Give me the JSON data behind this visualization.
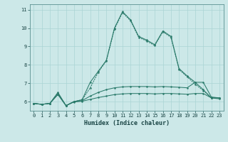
{
  "title": "",
  "xlabel": "Humidex (Indice chaleur)",
  "xlim": [
    -0.5,
    23.5
  ],
  "ylim": [
    5.5,
    11.3
  ],
  "xticks": [
    0,
    1,
    2,
    3,
    4,
    5,
    6,
    7,
    8,
    9,
    10,
    11,
    12,
    13,
    14,
    15,
    16,
    17,
    18,
    19,
    20,
    21,
    22,
    23
  ],
  "yticks": [
    6,
    7,
    8,
    9,
    10,
    11
  ],
  "color": "#2a7a6a",
  "bg_color": "#cce8e8",
  "grid_color": "#aad4d4",
  "line1_x": [
    0,
    1,
    2,
    3,
    4,
    5,
    6,
    7,
    8,
    9,
    10,
    11,
    12,
    13,
    14,
    15,
    16,
    17,
    18,
    19,
    20,
    21,
    22,
    23
  ],
  "line1_y": [
    5.9,
    5.85,
    5.9,
    6.5,
    5.78,
    6.0,
    6.1,
    7.05,
    7.65,
    8.25,
    10.0,
    10.9,
    10.45,
    9.55,
    9.35,
    9.1,
    9.85,
    9.55,
    7.8,
    7.4,
    7.05,
    6.65,
    6.2,
    6.2
  ],
  "line2_x": [
    0,
    1,
    2,
    3,
    4,
    5,
    6,
    7,
    8,
    9,
    10,
    11,
    12,
    13,
    14,
    15,
    16,
    17,
    18,
    19,
    20,
    21,
    22,
    23
  ],
  "line2_y": [
    5.9,
    5.85,
    5.9,
    6.45,
    5.78,
    6.0,
    6.1,
    6.75,
    7.6,
    8.22,
    9.95,
    10.85,
    10.4,
    9.5,
    9.3,
    9.05,
    9.8,
    9.5,
    7.75,
    7.35,
    6.95,
    6.6,
    6.2,
    6.2
  ],
  "line3_x": [
    0,
    1,
    2,
    3,
    4,
    5,
    6,
    7,
    8,
    9,
    10,
    11,
    12,
    13,
    14,
    15,
    16,
    17,
    18,
    19,
    20,
    21,
    22,
    23
  ],
  "line3_y": [
    5.9,
    5.85,
    5.9,
    6.4,
    5.78,
    6.0,
    6.05,
    6.3,
    6.5,
    6.65,
    6.75,
    6.8,
    6.82,
    6.82,
    6.82,
    6.8,
    6.82,
    6.8,
    6.78,
    6.75,
    7.05,
    7.05,
    6.25,
    6.2
  ],
  "line4_x": [
    0,
    1,
    2,
    3,
    4,
    5,
    6,
    7,
    8,
    9,
    10,
    11,
    12,
    13,
    14,
    15,
    16,
    17,
    18,
    19,
    20,
    21,
    22,
    23
  ],
  "line4_y": [
    5.9,
    5.85,
    5.9,
    6.38,
    5.78,
    5.98,
    6.02,
    6.12,
    6.22,
    6.3,
    6.38,
    6.42,
    6.44,
    6.44,
    6.44,
    6.42,
    6.44,
    6.44,
    6.42,
    6.4,
    6.44,
    6.44,
    6.2,
    6.15
  ]
}
